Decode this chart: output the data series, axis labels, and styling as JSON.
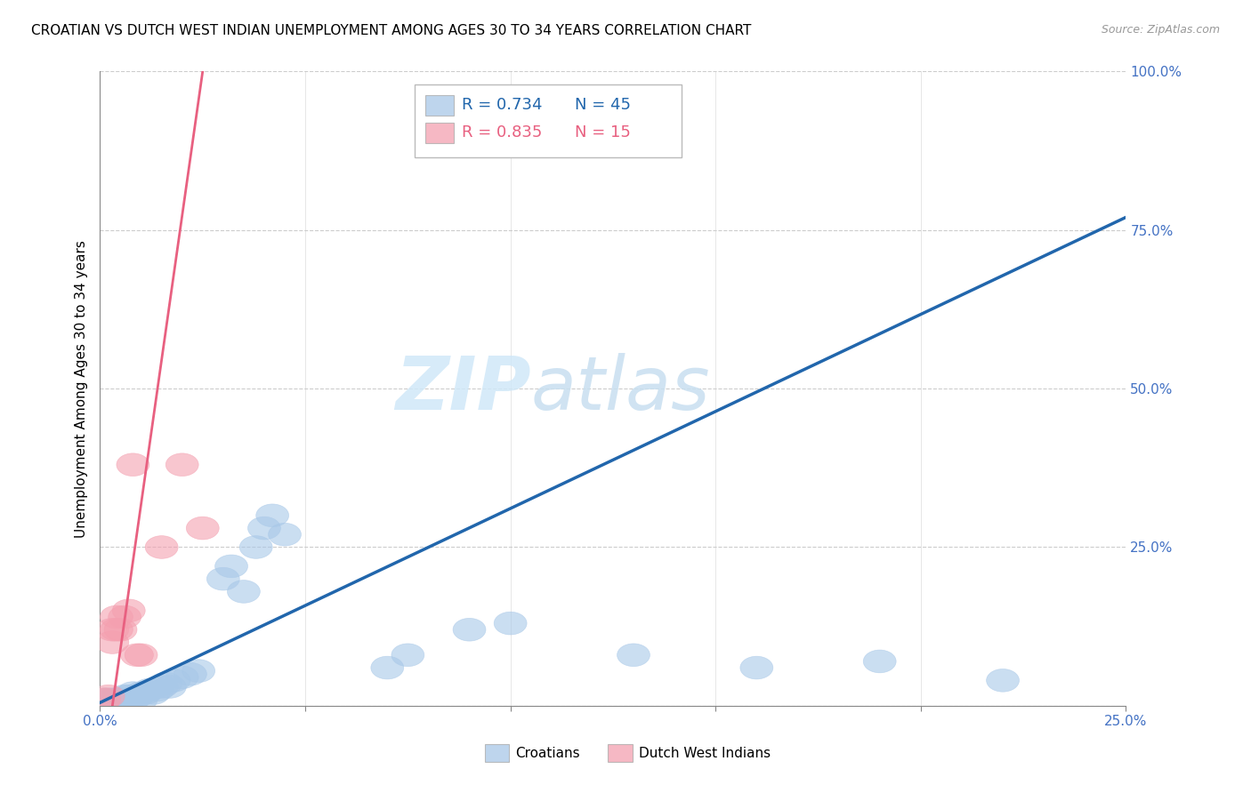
{
  "title": "CROATIAN VS DUTCH WEST INDIAN UNEMPLOYMENT AMONG AGES 30 TO 34 YEARS CORRELATION CHART",
  "source": "Source: ZipAtlas.com",
  "ylabel": "Unemployment Among Ages 30 to 34 years",
  "xlim": [
    0,
    0.25
  ],
  "ylim": [
    0,
    1.0
  ],
  "xticks": [
    0.0,
    0.05,
    0.1,
    0.15,
    0.2,
    0.25
  ],
  "yticks": [
    0.0,
    0.25,
    0.5,
    0.75,
    1.0
  ],
  "xtick_labels": [
    "0.0%",
    "",
    "",
    "",
    "",
    "25.0%"
  ],
  "ytick_labels": [
    "",
    "25.0%",
    "50.0%",
    "75.0%",
    "100.0%"
  ],
  "blue_R": 0.734,
  "blue_N": 45,
  "pink_R": 0.835,
  "pink_N": 15,
  "blue_color": "#a8c8e8",
  "blue_line_color": "#2166ac",
  "pink_color": "#f4a0b0",
  "pink_line_color": "#e86080",
  "legend_label_blue": "Croatians",
  "legend_label_pink": "Dutch West Indians",
  "watermark_zip": "ZIP",
  "watermark_atlas": "atlas",
  "background_color": "#ffffff",
  "blue_scatter_x": [
    0.001,
    0.001,
    0.002,
    0.002,
    0.003,
    0.003,
    0.004,
    0.004,
    0.005,
    0.005,
    0.006,
    0.006,
    0.007,
    0.007,
    0.008,
    0.008,
    0.009,
    0.01,
    0.01,
    0.011,
    0.012,
    0.013,
    0.014,
    0.015,
    0.016,
    0.017,
    0.018,
    0.02,
    0.022,
    0.024,
    0.03,
    0.032,
    0.035,
    0.038,
    0.04,
    0.042,
    0.045,
    0.07,
    0.075,
    0.09,
    0.1,
    0.13,
    0.16,
    0.19,
    0.22
  ],
  "blue_scatter_y": [
    0.005,
    0.01,
    0.005,
    0.01,
    0.005,
    0.01,
    0.005,
    0.01,
    0.005,
    0.01,
    0.01,
    0.015,
    0.01,
    0.015,
    0.01,
    0.02,
    0.015,
    0.01,
    0.02,
    0.02,
    0.025,
    0.02,
    0.025,
    0.03,
    0.035,
    0.03,
    0.04,
    0.045,
    0.05,
    0.055,
    0.2,
    0.22,
    0.18,
    0.25,
    0.28,
    0.3,
    0.27,
    0.06,
    0.08,
    0.12,
    0.13,
    0.08,
    0.06,
    0.07,
    0.04
  ],
  "pink_scatter_x": [
    0.001,
    0.002,
    0.003,
    0.003,
    0.004,
    0.004,
    0.005,
    0.006,
    0.007,
    0.008,
    0.009,
    0.01,
    0.015,
    0.02,
    0.025
  ],
  "pink_scatter_y": [
    0.01,
    0.015,
    0.1,
    0.12,
    0.12,
    0.14,
    0.12,
    0.14,
    0.15,
    0.38,
    0.08,
    0.08,
    0.25,
    0.38,
    0.28
  ],
  "blue_line_x": [
    0.0,
    0.25
  ],
  "blue_line_y": [
    0.005,
    0.77
  ],
  "pink_line_x": [
    0.003,
    0.025
  ],
  "pink_line_y": [
    0.0,
    1.0
  ]
}
